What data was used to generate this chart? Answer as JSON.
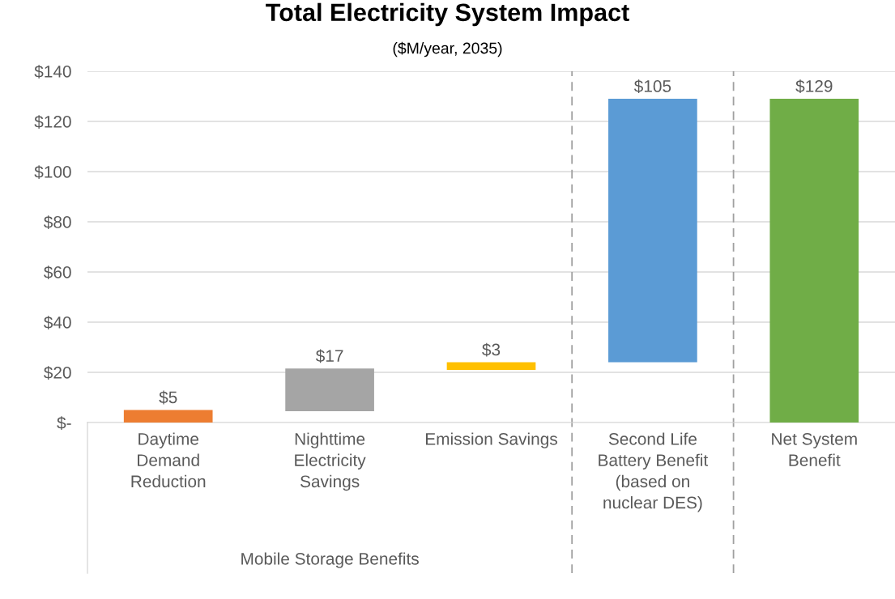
{
  "chart_data": {
    "type": "bar",
    "title": "Total Electricity System Impact",
    "subtitle": "($M/year, 2035)",
    "categories": [
      "Daytime\nDemand\nReduction",
      "Nighttime\nElectricity\nSavings",
      "Emission Savings",
      "Second Life\nBattery Benefit\n(based on\nnuclear DES)",
      "Net System\nBenefit"
    ],
    "values": [
      5,
      17,
      3,
      105,
      129
    ],
    "base": [
      0,
      4.5,
      21,
      24,
      0
    ],
    "colors": [
      "#ed7d31",
      "#a5a5a5",
      "#ffc000",
      "#5b9bd5",
      "#70ad47"
    ],
    "value_labels": [
      "$5",
      "$17",
      "$3",
      "$105",
      "$129"
    ],
    "ylim": [
      0,
      140
    ],
    "yticks": [
      {
        "value": 0,
        "label": "$-"
      },
      {
        "value": 20,
        "label": "$20"
      },
      {
        "value": 40,
        "label": "$40"
      },
      {
        "value": 60,
        "label": "$60"
      },
      {
        "value": 80,
        "label": "$80"
      },
      {
        "value": 100,
        "label": "$100"
      },
      {
        "value": 120,
        "label": "$120"
      },
      {
        "value": 140,
        "label": "$140"
      }
    ],
    "grid": "y",
    "annotations": [
      "Mobile Storage Benefits"
    ]
  }
}
